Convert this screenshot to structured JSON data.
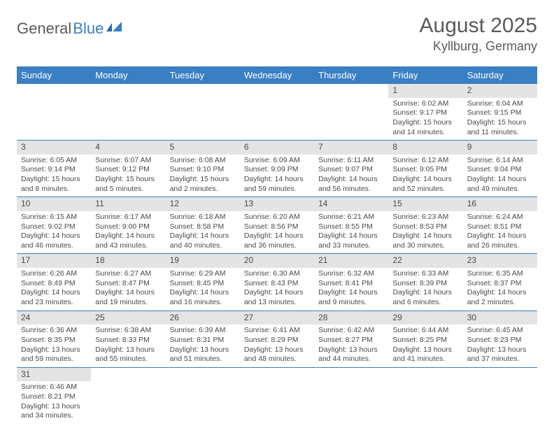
{
  "logo": {
    "text1": "General",
    "text2": "Blue"
  },
  "header": {
    "title": "August 2025",
    "location": "Kyllburg, Germany"
  },
  "colors": {
    "header_bar": "#3a7fc4",
    "row_divider": "#3a7fc4",
    "day_band": "#e4e4e4",
    "text": "#4a4a4a",
    "background": "#ffffff"
  },
  "weekdays": [
    "Sunday",
    "Monday",
    "Tuesday",
    "Wednesday",
    "Thursday",
    "Friday",
    "Saturday"
  ],
  "weeks": [
    [
      null,
      null,
      null,
      null,
      null,
      {
        "n": "1",
        "sunrise": "6:02 AM",
        "sunset": "9:17 PM",
        "daylight": "15 hours and 14 minutes."
      },
      {
        "n": "2",
        "sunrise": "6:04 AM",
        "sunset": "9:15 PM",
        "daylight": "15 hours and 11 minutes."
      }
    ],
    [
      {
        "n": "3",
        "sunrise": "6:05 AM",
        "sunset": "9:14 PM",
        "daylight": "15 hours and 8 minutes."
      },
      {
        "n": "4",
        "sunrise": "6:07 AM",
        "sunset": "9:12 PM",
        "daylight": "15 hours and 5 minutes."
      },
      {
        "n": "5",
        "sunrise": "6:08 AM",
        "sunset": "9:10 PM",
        "daylight": "15 hours and 2 minutes."
      },
      {
        "n": "6",
        "sunrise": "6:09 AM",
        "sunset": "9:09 PM",
        "daylight": "14 hours and 59 minutes."
      },
      {
        "n": "7",
        "sunrise": "6:11 AM",
        "sunset": "9:07 PM",
        "daylight": "14 hours and 56 minutes."
      },
      {
        "n": "8",
        "sunrise": "6:12 AM",
        "sunset": "9:05 PM",
        "daylight": "14 hours and 52 minutes."
      },
      {
        "n": "9",
        "sunrise": "6:14 AM",
        "sunset": "9:04 PM",
        "daylight": "14 hours and 49 minutes."
      }
    ],
    [
      {
        "n": "10",
        "sunrise": "6:15 AM",
        "sunset": "9:02 PM",
        "daylight": "14 hours and 46 minutes."
      },
      {
        "n": "11",
        "sunrise": "6:17 AM",
        "sunset": "9:00 PM",
        "daylight": "14 hours and 43 minutes."
      },
      {
        "n": "12",
        "sunrise": "6:18 AM",
        "sunset": "8:58 PM",
        "daylight": "14 hours and 40 minutes."
      },
      {
        "n": "13",
        "sunrise": "6:20 AM",
        "sunset": "8:56 PM",
        "daylight": "14 hours and 36 minutes."
      },
      {
        "n": "14",
        "sunrise": "6:21 AM",
        "sunset": "8:55 PM",
        "daylight": "14 hours and 33 minutes."
      },
      {
        "n": "15",
        "sunrise": "6:23 AM",
        "sunset": "8:53 PM",
        "daylight": "14 hours and 30 minutes."
      },
      {
        "n": "16",
        "sunrise": "6:24 AM",
        "sunset": "8:51 PM",
        "daylight": "14 hours and 26 minutes."
      }
    ],
    [
      {
        "n": "17",
        "sunrise": "6:26 AM",
        "sunset": "8:49 PM",
        "daylight": "14 hours and 23 minutes."
      },
      {
        "n": "18",
        "sunrise": "6:27 AM",
        "sunset": "8:47 PM",
        "daylight": "14 hours and 19 minutes."
      },
      {
        "n": "19",
        "sunrise": "6:29 AM",
        "sunset": "8:45 PM",
        "daylight": "14 hours and 16 minutes."
      },
      {
        "n": "20",
        "sunrise": "6:30 AM",
        "sunset": "8:43 PM",
        "daylight": "14 hours and 13 minutes."
      },
      {
        "n": "21",
        "sunrise": "6:32 AM",
        "sunset": "8:41 PM",
        "daylight": "14 hours and 9 minutes."
      },
      {
        "n": "22",
        "sunrise": "6:33 AM",
        "sunset": "8:39 PM",
        "daylight": "14 hours and 6 minutes."
      },
      {
        "n": "23",
        "sunrise": "6:35 AM",
        "sunset": "8:37 PM",
        "daylight": "14 hours and 2 minutes."
      }
    ],
    [
      {
        "n": "24",
        "sunrise": "6:36 AM",
        "sunset": "8:35 PM",
        "daylight": "13 hours and 59 minutes."
      },
      {
        "n": "25",
        "sunrise": "6:38 AM",
        "sunset": "8:33 PM",
        "daylight": "13 hours and 55 minutes."
      },
      {
        "n": "26",
        "sunrise": "6:39 AM",
        "sunset": "8:31 PM",
        "daylight": "13 hours and 51 minutes."
      },
      {
        "n": "27",
        "sunrise": "6:41 AM",
        "sunset": "8:29 PM",
        "daylight": "13 hours and 48 minutes."
      },
      {
        "n": "28",
        "sunrise": "6:42 AM",
        "sunset": "8:27 PM",
        "daylight": "13 hours and 44 minutes."
      },
      {
        "n": "29",
        "sunrise": "6:44 AM",
        "sunset": "8:25 PM",
        "daylight": "13 hours and 41 minutes."
      },
      {
        "n": "30",
        "sunrise": "6:45 AM",
        "sunset": "8:23 PM",
        "daylight": "13 hours and 37 minutes."
      }
    ],
    [
      {
        "n": "31",
        "sunrise": "6:46 AM",
        "sunset": "8:21 PM",
        "daylight": "13 hours and 34 minutes."
      },
      null,
      null,
      null,
      null,
      null,
      null
    ]
  ],
  "labels": {
    "sunrise": "Sunrise: ",
    "sunset": "Sunset: ",
    "daylight": "Daylight: "
  }
}
